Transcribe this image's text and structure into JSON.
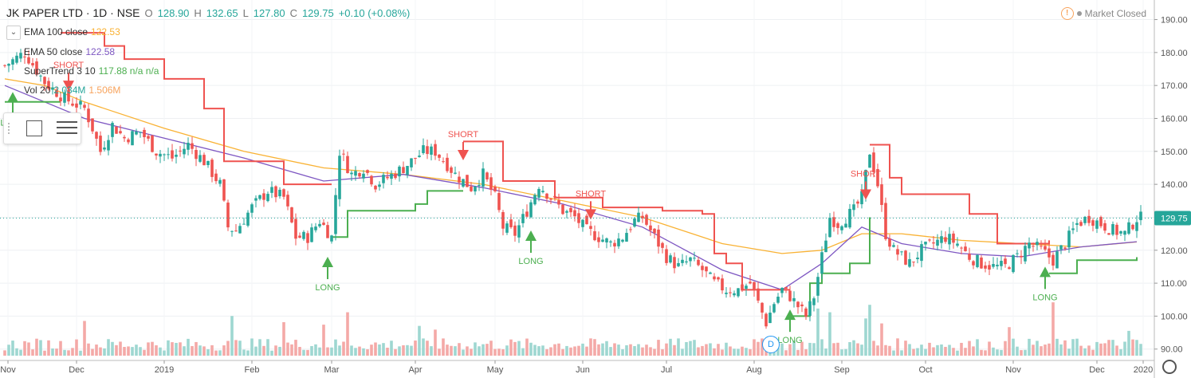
{
  "header": {
    "symbol": "JK PAPER LTD · 1D · NSE",
    "o_label": "O",
    "o": "128.90",
    "h_label": "H",
    "h": "132.65",
    "l_label": "L",
    "l": "127.80",
    "c_label": "C",
    "c": "129.75",
    "change": "+0.10 (+0.08%)"
  },
  "market_status": "Market Closed",
  "indicators": [
    {
      "name": "EMA 100 close",
      "value": "122.53",
      "color": "#f9b234"
    },
    {
      "name": "EMA 50 close",
      "value": "122.58",
      "color": "#7e57c2"
    },
    {
      "name": "SuperTrend 3 10",
      "value": "117.88  n/a  n/a",
      "color": "#4caf50"
    },
    {
      "name": "Vol 20",
      "value": "2.034M",
      "value2": "1.506M",
      "color": "#26a69a",
      "color2": "#f7a35c"
    }
  ],
  "price_badge": "129.75",
  "event_marker": "D",
  "colors": {
    "up": "#26a69a",
    "down": "#ef5350",
    "supertrend_up": "#4caf50",
    "supertrend_down": "#ef5350",
    "ema100": "#f9b234",
    "ema50": "#7e57c2"
  },
  "icons": [
    "warning-icon",
    "collapse-icon",
    "rectangle-icon",
    "menu-icon",
    "settings-gear-icon"
  ],
  "chart_data": {
    "type": "candlestick",
    "yaxis": {
      "ticks": [
        "190.00",
        "180.00",
        "170.00",
        "160.00",
        "150.00",
        "140.00",
        "130.00",
        "120.00",
        "110.00",
        "100.00",
        "90.00"
      ],
      "range": [
        88,
        194
      ],
      "side": "right"
    },
    "xaxis": {
      "ticks": [
        "Nov",
        "Dec",
        "2019",
        "Feb",
        "Mar",
        "Apr",
        "May",
        "Jun",
        "Jul",
        "Aug",
        "Sep",
        "Oct",
        "Nov",
        "Dec",
        "2020"
      ]
    },
    "last_price": 129.75,
    "price_path": [
      [
        0,
        176
      ],
      [
        5,
        180
      ],
      [
        10,
        171
      ],
      [
        15,
        166
      ],
      [
        20,
        163
      ],
      [
        22,
        157
      ],
      [
        24,
        150
      ],
      [
        27,
        158
      ],
      [
        30,
        154
      ],
      [
        34,
        156
      ],
      [
        38,
        150
      ],
      [
        42,
        148
      ],
      [
        46,
        152
      ],
      [
        50,
        147
      ],
      [
        54,
        140
      ],
      [
        56,
        127
      ],
      [
        58,
        126
      ],
      [
        62,
        133
      ],
      [
        66,
        138
      ],
      [
        70,
        136
      ],
      [
        73,
        124
      ],
      [
        76,
        124
      ],
      [
        79,
        129
      ],
      [
        82,
        124
      ],
      [
        84,
        150
      ],
      [
        87,
        143
      ],
      [
        90,
        145
      ],
      [
        93,
        140
      ],
      [
        96,
        142
      ],
      [
        100,
        145
      ],
      [
        103,
        148
      ],
      [
        105,
        150
      ],
      [
        108,
        150
      ],
      [
        111,
        146
      ],
      [
        113,
        143
      ],
      [
        115,
        141
      ],
      [
        117,
        139
      ],
      [
        120,
        143
      ],
      [
        123,
        136
      ],
      [
        125,
        127
      ],
      [
        128,
        125
      ],
      [
        131,
        132
      ],
      [
        134,
        140
      ],
      [
        137,
        136
      ],
      [
        140,
        132
      ],
      [
        143,
        130
      ],
      [
        146,
        126
      ],
      [
        149,
        124
      ],
      [
        152,
        122
      ],
      [
        155,
        124
      ],
      [
        158,
        129
      ],
      [
        160,
        130
      ],
      [
        163,
        124
      ],
      [
        166,
        118
      ],
      [
        169,
        115
      ],
      [
        172,
        117
      ],
      [
        175,
        114
      ],
      [
        178,
        110
      ],
      [
        181,
        108
      ],
      [
        184,
        108
      ],
      [
        187,
        110
      ],
      [
        189,
        104
      ],
      [
        191,
        98
      ],
      [
        193,
        104
      ],
      [
        195,
        108
      ],
      [
        197,
        106
      ],
      [
        199,
        103
      ],
      [
        201,
        100
      ],
      [
        203,
        106
      ],
      [
        205,
        118
      ],
      [
        207,
        130
      ],
      [
        209,
        128
      ],
      [
        211,
        130
      ],
      [
        213,
        132
      ],
      [
        215,
        136
      ],
      [
        217,
        150
      ],
      [
        219,
        140
      ],
      [
        221,
        125
      ],
      [
        223,
        120
      ],
      [
        225,
        118
      ],
      [
        227,
        116
      ],
      [
        230,
        120
      ],
      [
        233,
        122
      ],
      [
        236,
        124
      ],
      [
        239,
        122
      ],
      [
        242,
        118
      ],
      [
        245,
        116
      ],
      [
        248,
        115
      ],
      [
        251,
        115
      ],
      [
        254,
        118
      ],
      [
        257,
        122
      ],
      [
        260,
        120
      ],
      [
        263,
        117
      ],
      [
        266,
        122
      ],
      [
        269,
        128
      ],
      [
        272,
        130
      ],
      [
        275,
        128
      ],
      [
        278,
        126
      ],
      [
        281,
        125
      ],
      [
        284,
        129.75
      ]
    ],
    "ema100_path": [
      [
        0,
        172
      ],
      [
        10,
        170
      ],
      [
        20,
        165
      ],
      [
        40,
        157
      ],
      [
        60,
        150
      ],
      [
        80,
        145
      ],
      [
        100,
        143
      ],
      [
        120,
        140
      ],
      [
        140,
        135
      ],
      [
        160,
        130
      ],
      [
        180,
        122
      ],
      [
        195,
        119
      ],
      [
        205,
        120
      ],
      [
        215,
        125
      ],
      [
        225,
        125
      ],
      [
        240,
        123
      ],
      [
        255,
        122
      ],
      [
        270,
        121
      ],
      [
        284,
        122.53
      ]
    ],
    "ema50_path": [
      [
        0,
        170
      ],
      [
        10,
        165
      ],
      [
        20,
        160
      ],
      [
        40,
        154
      ],
      [
        60,
        148
      ],
      [
        80,
        141
      ],
      [
        100,
        143
      ],
      [
        120,
        139
      ],
      [
        140,
        134
      ],
      [
        160,
        127
      ],
      [
        180,
        114
      ],
      [
        195,
        108
      ],
      [
        205,
        116
      ],
      [
        215,
        127
      ],
      [
        225,
        122
      ],
      [
        240,
        119
      ],
      [
        255,
        118
      ],
      [
        270,
        121
      ],
      [
        284,
        122.58
      ]
    ],
    "supertrend_segments": [
      {
        "trend": "up",
        "points": [
          [
            0,
            165
          ],
          [
            5,
            165
          ],
          [
            12,
            165
          ],
          [
            14,
            165
          ]
        ]
      },
      {
        "trend": "down",
        "points": [
          [
            14,
            186
          ],
          [
            20,
            186
          ],
          [
            25,
            182
          ],
          [
            30,
            178
          ],
          [
            40,
            172
          ],
          [
            50,
            163
          ],
          [
            55,
            147
          ],
          [
            70,
            140
          ],
          [
            82,
            140
          ]
        ]
      },
      {
        "trend": "up",
        "points": [
          [
            82,
            124
          ],
          [
            86,
            132
          ],
          [
            100,
            132
          ],
          [
            103,
            134
          ],
          [
            106,
            138
          ],
          [
            115,
            138
          ]
        ]
      },
      {
        "trend": "down",
        "points": [
          [
            115,
            153
          ],
          [
            122,
            153
          ],
          [
            125,
            141
          ],
          [
            134,
            141
          ],
          [
            138,
            136
          ],
          [
            150,
            133
          ],
          [
            165,
            132
          ],
          [
            175,
            131
          ],
          [
            178,
            119
          ],
          [
            181,
            116
          ],
          [
            185,
            108
          ],
          [
            197,
            108
          ]
        ]
      },
      {
        "trend": "up",
        "points": [
          [
            197,
            100
          ],
          [
            202,
            110
          ],
          [
            205,
            113
          ],
          [
            212,
            116
          ],
          [
            217,
            130
          ]
        ]
      },
      {
        "trend": "down",
        "points": [
          [
            217,
            152
          ],
          [
            222,
            142
          ],
          [
            225,
            137
          ],
          [
            238,
            137
          ],
          [
            242,
            131
          ],
          [
            249,
            122
          ],
          [
            259,
            122
          ],
          [
            262,
            123
          ]
        ]
      },
      {
        "trend": "up",
        "points": [
          [
            262,
            113
          ],
          [
            266,
            113
          ],
          [
            269,
            117
          ],
          [
            282,
            117
          ],
          [
            284,
            117.88
          ]
        ]
      }
    ],
    "signals": [
      {
        "x": 2,
        "type": "LONG",
        "price": 168
      },
      {
        "x": 16,
        "type": "SHORT",
        "price": 170
      },
      {
        "x": 81,
        "type": "LONG",
        "price": 118
      },
      {
        "x": 115,
        "type": "SHORT",
        "price": 149
      },
      {
        "x": 132,
        "type": "LONG",
        "price": 126
      },
      {
        "x": 147,
        "type": "SHORT",
        "price": 131
      },
      {
        "x": 197,
        "type": "LONG",
        "price": 102
      },
      {
        "x": 216,
        "type": "SHORT",
        "price": 137
      },
      {
        "x": 261,
        "type": "LONG",
        "price": 115
      }
    ],
    "volume": {
      "max_m": 4.5,
      "spikes": [
        [
          20,
          2.8
        ],
        [
          57,
          3.2
        ],
        [
          70,
          2.7
        ],
        [
          80,
          2.5
        ],
        [
          86,
          3.5
        ],
        [
          104,
          2.4
        ],
        [
          108,
          2.1
        ],
        [
          204,
          3.8
        ],
        [
          207,
          3.5
        ],
        [
          216,
          3.0
        ],
        [
          217,
          4.1
        ],
        [
          220,
          2.6
        ],
        [
          252,
          2.3
        ],
        [
          263,
          4.3
        ],
        [
          282,
          2.0
        ]
      ]
    }
  }
}
